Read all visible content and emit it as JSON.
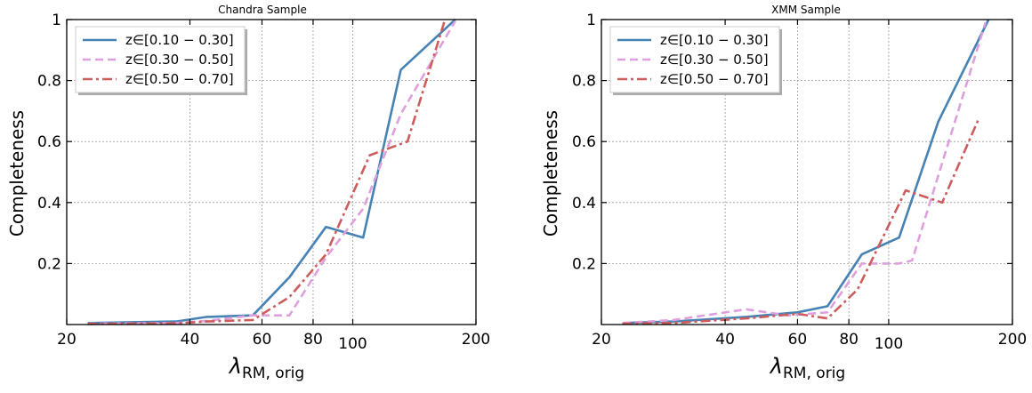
{
  "chart_data": [
    {
      "type": "line",
      "title": "Chandra Sample",
      "xlabel": "λ_RM, orig",
      "xlabel_main": "λ",
      "xlabel_sub": "RM, orig",
      "ylabel": "Completeness",
      "xscale": "log",
      "xlim": [
        20,
        200
      ],
      "ylim": [
        0,
        1
      ],
      "xticks": [
        20,
        40,
        60,
        80,
        100,
        200
      ],
      "yticks": [
        0.2,
        0.4,
        0.6,
        0.8,
        1
      ],
      "ytick_labels": [
        "0.2",
        "0.4",
        "0.6",
        "0.8",
        "1"
      ],
      "grid": true,
      "legend_position": "top-left",
      "series": [
        {
          "name": "z∈[0.10 − 0.30]",
          "color": "#4682b4",
          "dash": "solid",
          "x": [
            22.5,
            37,
            44,
            57,
            70,
            86,
            106,
            131,
            178
          ],
          "y": [
            0.005,
            0.01,
            0.025,
            0.03,
            0.155,
            0.32,
            0.285,
            0.835,
            1.0
          ]
        },
        {
          "name": "z∈[0.30 − 0.50]",
          "color": "#dda0dd",
          "dash": "dashed",
          "x": [
            22.5,
            37,
            44,
            57,
            70,
            86,
            106,
            131,
            178
          ],
          "y": [
            0.003,
            0.005,
            0.012,
            0.03,
            0.03,
            0.22,
            0.38,
            0.69,
            0.995
          ]
        },
        {
          "name": "z∈[0.50 − 0.70]",
          "color": "#cd5c5c",
          "dash": "dashdot",
          "x": [
            22.5,
            37,
            44,
            57,
            70,
            86,
            110,
            136,
            168
          ],
          "y": [
            0.002,
            0.004,
            0.01,
            0.015,
            0.09,
            0.23,
            0.555,
            0.6,
            1.0
          ]
        }
      ]
    },
    {
      "type": "line",
      "title": "XMM Sample",
      "xlabel": "λ_RM, orig",
      "xlabel_main": "λ",
      "xlabel_sub": "RM, orig",
      "ylabel": "Completeness",
      "xscale": "log",
      "xlim": [
        20,
        200
      ],
      "ylim": [
        0,
        1
      ],
      "xticks": [
        20,
        40,
        60,
        80,
        100,
        200
      ],
      "yticks": [
        0.2,
        0.4,
        0.6,
        0.8,
        1
      ],
      "ytick_labels": [
        "0.2",
        "0.4",
        "0.6",
        "0.8",
        "1"
      ],
      "grid": true,
      "legend_position": "top-left",
      "series": [
        {
          "name": "z∈[0.10 − 0.30]",
          "color": "#4682b4",
          "dash": "solid",
          "x": [
            22.5,
            30,
            45,
            60,
            71,
            86,
            106,
            132,
            175
          ],
          "y": [
            0.005,
            0.01,
            0.025,
            0.04,
            0.06,
            0.23,
            0.285,
            0.665,
            1.0
          ]
        },
        {
          "name": "z∈[0.30 − 0.50]",
          "color": "#dda0dd",
          "dash": "dashed",
          "x": [
            22.5,
            30,
            45,
            57,
            71,
            86,
            106,
            114,
            172
          ],
          "y": [
            0.005,
            0.015,
            0.05,
            0.03,
            0.04,
            0.2,
            0.2,
            0.21,
            0.99
          ]
        },
        {
          "name": "z∈[0.50 − 0.70]",
          "color": "#cd5c5c",
          "dash": "dashdot",
          "x": [
            22.5,
            30,
            45,
            60,
            71,
            84,
            110,
            135,
            165
          ],
          "y": [
            0.003,
            0.005,
            0.02,
            0.035,
            0.02,
            0.115,
            0.44,
            0.4,
            0.67
          ]
        }
      ]
    }
  ]
}
